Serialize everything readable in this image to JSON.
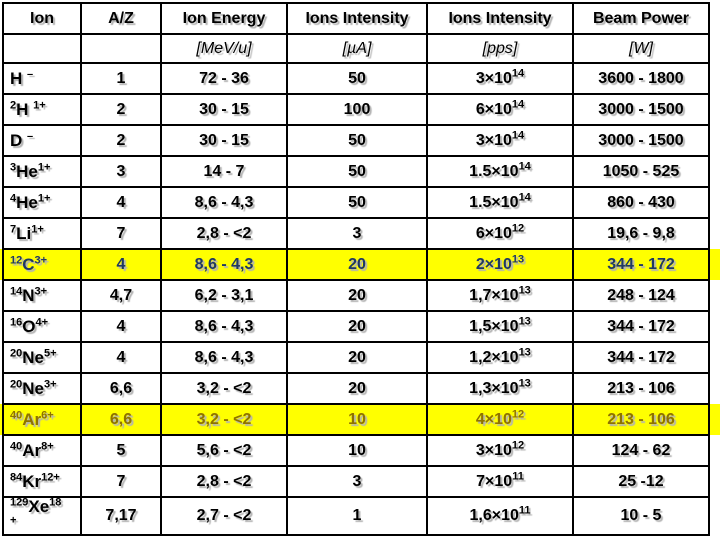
{
  "table": {
    "columns": {
      "ion": "Ion",
      "az": "A/Z",
      "energy": "Ion Energy",
      "intensity_ua": "Ions Intensity",
      "intensity_pps": "Ions Intensity",
      "beam_power": "Beam Power"
    },
    "units": {
      "ion": "",
      "az": "",
      "energy": "[MeV/u]",
      "intensity_ua": "[µA]",
      "intensity_pps": "[pps]",
      "beam_power": "[W]"
    },
    "colors": {
      "highlight_bg": "#ffff00",
      "highlight_text_blue": "#1f3864",
      "highlight_text_olive": "#8e7200",
      "text": "#000000",
      "text_shadow": "#b3b3b3",
      "border": "#000000"
    },
    "rows": [
      {
        "ion": {
          "mass": "",
          "symbol": "H ",
          "charge": "–"
        },
        "az": "1",
        "energy": "72 - 36",
        "intensity_ua": "50",
        "intensity_pps": {
          "base": "3×10",
          "exp": "14"
        },
        "beam_power": "3600 - 1800",
        "highlight": ""
      },
      {
        "ion": {
          "mass": "2",
          "symbol": "H ",
          "charge": "1+"
        },
        "az": "2",
        "energy": "30 - 15",
        "intensity_ua": "100",
        "intensity_pps": {
          "base": "6×10",
          "exp": "14"
        },
        "beam_power": "3000 - 1500",
        "highlight": ""
      },
      {
        "ion": {
          "mass": "",
          "symbol": "D ",
          "charge": "–"
        },
        "az": "2",
        "energy": "30 - 15",
        "intensity_ua": "50",
        "intensity_pps": {
          "base": "3×10",
          "exp": "14"
        },
        "beam_power": "3000 - 1500",
        "highlight": ""
      },
      {
        "ion": {
          "mass": "3",
          "symbol": "He",
          "charge": "1+"
        },
        "az": "3",
        "energy": "14 - 7",
        "intensity_ua": "50",
        "intensity_pps": {
          "base": "1.5×10",
          "exp": "14"
        },
        "beam_power": "1050 - 525",
        "highlight": ""
      },
      {
        "ion": {
          "mass": "4",
          "symbol": "He",
          "charge": "1+"
        },
        "az": "4",
        "energy": "8,6 - 4,3",
        "intensity_ua": "50",
        "intensity_pps": {
          "base": "1.5×10",
          "exp": "14"
        },
        "beam_power": "860 - 430",
        "highlight": ""
      },
      {
        "ion": {
          "mass": "7",
          "symbol": "Li",
          "charge": "1+"
        },
        "az": "7",
        "energy": "2,8 - <2",
        "intensity_ua": "3",
        "intensity_pps": {
          "base": "6×10",
          "exp": "12"
        },
        "beam_power": "19,6 - 9,8",
        "highlight": ""
      },
      {
        "ion": {
          "mass": "12",
          "symbol": "C",
          "charge": "3+"
        },
        "az": "4",
        "energy": "8,6 - 4,3",
        "intensity_ua": "20",
        "intensity_pps": {
          "base": "2×10",
          "exp": "13"
        },
        "beam_power": "344 - 172",
        "highlight": "blue"
      },
      {
        "ion": {
          "mass": "14",
          "symbol": "N",
          "charge": "3+"
        },
        "az": "4,7",
        "energy": "6,2 - 3,1",
        "intensity_ua": "20",
        "intensity_pps": {
          "base": "1,7×10",
          "exp": "13"
        },
        "beam_power": "248 - 124",
        "highlight": ""
      },
      {
        "ion": {
          "mass": "16",
          "symbol": "O",
          "charge": "4+"
        },
        "az": "4",
        "energy": "8,6 - 4,3",
        "intensity_ua": "20",
        "intensity_pps": {
          "base": "1,5×10",
          "exp": "13"
        },
        "beam_power": "344 - 172",
        "highlight": ""
      },
      {
        "ion": {
          "mass": "20",
          "symbol": "Ne",
          "charge": "5+"
        },
        "az": "4",
        "energy": "8,6 - 4,3",
        "intensity_ua": "20",
        "intensity_pps": {
          "base": "1,2×10",
          "exp": "13"
        },
        "beam_power": "344 - 172",
        "highlight": ""
      },
      {
        "ion": {
          "mass": "20",
          "symbol": "Ne",
          "charge": "3+"
        },
        "az": "6,6",
        "energy": "3,2 - <2",
        "intensity_ua": "20",
        "intensity_pps": {
          "base": "1,3×10",
          "exp": "13"
        },
        "beam_power": "213 - 106",
        "highlight": ""
      },
      {
        "ion": {
          "mass": "40",
          "symbol": "Ar",
          "charge": "6+"
        },
        "az": "6,6",
        "energy": "3,2 - <2",
        "intensity_ua": "10",
        "intensity_pps": {
          "base": "4×10",
          "exp": "12"
        },
        "beam_power": "213 - 106",
        "highlight": "olive"
      },
      {
        "ion": {
          "mass": "40",
          "symbol": "Ar",
          "charge": "8+"
        },
        "az": "5",
        "energy": "5,6 - <2",
        "intensity_ua": "10",
        "intensity_pps": {
          "base": "3×10",
          "exp": "12"
        },
        "beam_power": "124 - 62",
        "highlight": ""
      },
      {
        "ion": {
          "mass": "84",
          "symbol": "Kr",
          "charge": "12+"
        },
        "az": "7",
        "energy": "2,8 - <2",
        "intensity_ua": "3",
        "intensity_pps": {
          "base": "7×10",
          "exp": "11"
        },
        "beam_power": "25 -12",
        "highlight": ""
      },
      {
        "ion": {
          "mass": "129",
          "symbol": "Xe",
          "charge": "18",
          "wrap": "+"
        },
        "az": "7,17",
        "energy": "2,7 - <2",
        "intensity_ua": "1",
        "intensity_pps": {
          "base": "1,6×10",
          "exp": "11"
        },
        "beam_power": "10 - 5",
        "highlight": ""
      }
    ]
  }
}
